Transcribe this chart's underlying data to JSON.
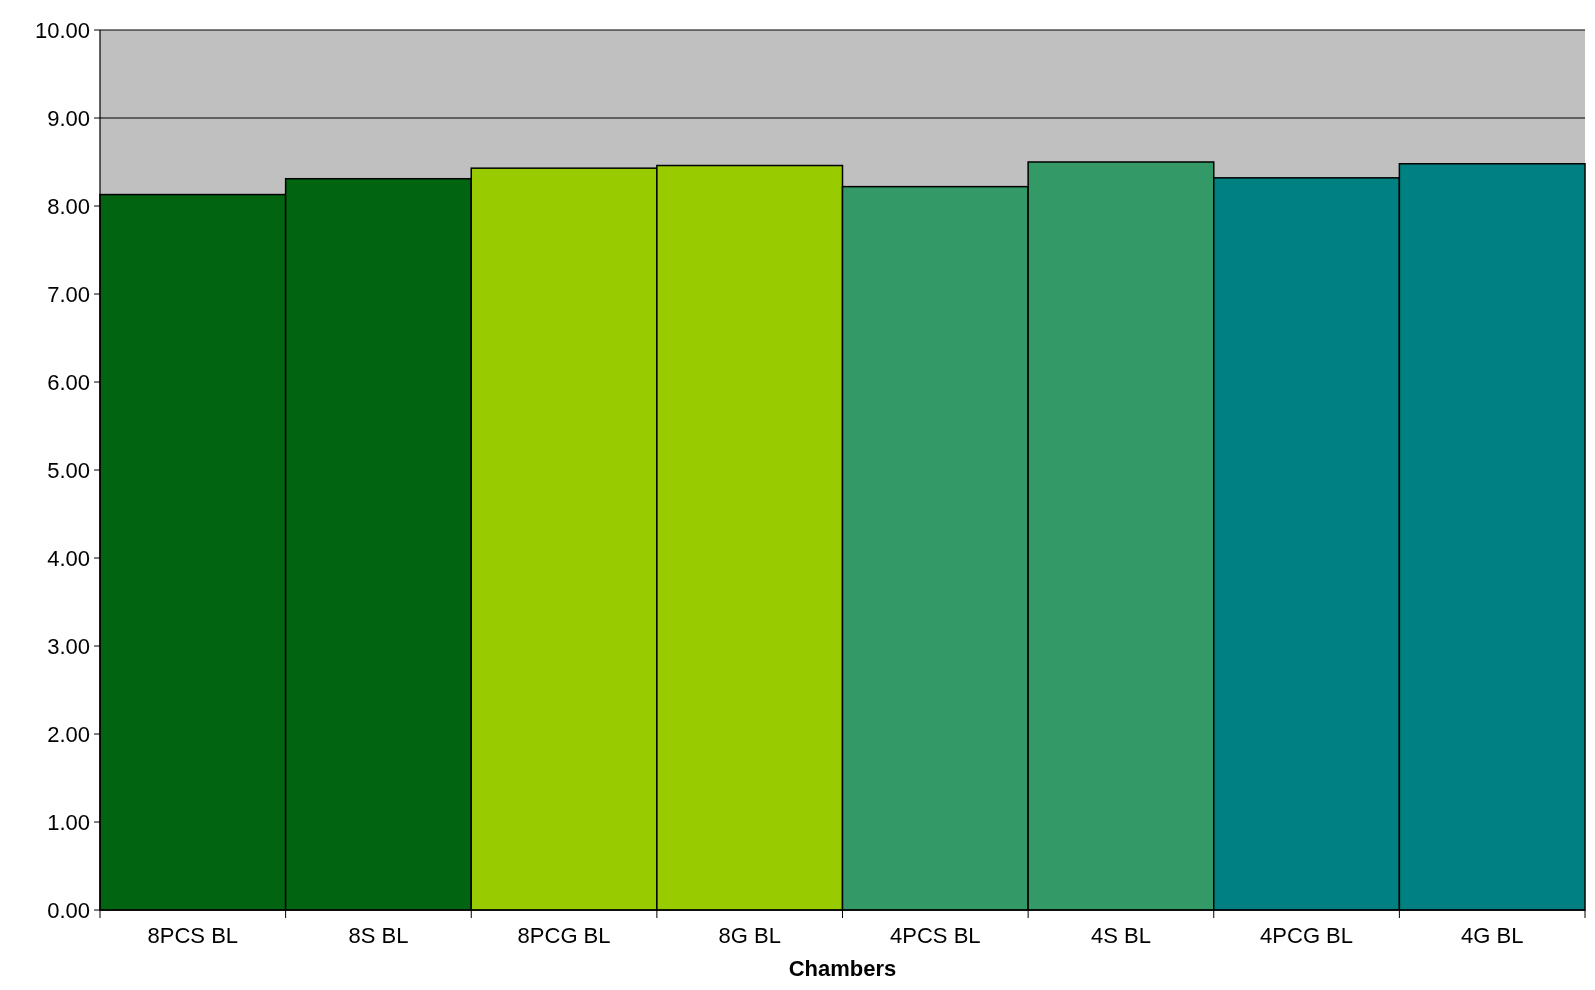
{
  "chart_data": {
    "type": "bar",
    "xlabel": "Chambers",
    "categories": [
      "8PCS BL",
      "8S BL",
      "8PCG BL",
      "8G BL",
      "4PCS BL",
      "4S BL",
      "4PCG BL",
      "4G BL"
    ],
    "values": [
      8.13,
      8.31,
      8.43,
      8.46,
      8.22,
      8.5,
      8.32,
      8.48
    ],
    "colors": [
      "#006411",
      "#006411",
      "#99cc00",
      "#99cc00",
      "#339966",
      "#339966",
      "#008080",
      "#008080"
    ],
    "ylim": [
      0,
      10
    ],
    "yticks": [
      {
        "value": 0,
        "label": "0.00"
      },
      {
        "value": 1,
        "label": "1.00"
      },
      {
        "value": 2,
        "label": "2.00"
      },
      {
        "value": 3,
        "label": "3.00"
      },
      {
        "value": 4,
        "label": "4.00"
      },
      {
        "value": 5,
        "label": "5.00"
      },
      {
        "value": 6,
        "label": "6.00"
      },
      {
        "value": 7,
        "label": "7.00"
      },
      {
        "value": 8,
        "label": "8.00"
      },
      {
        "value": 9,
        "label": "9.00"
      },
      {
        "value": 10,
        "label": "10.00"
      }
    ],
    "grid": "y"
  }
}
